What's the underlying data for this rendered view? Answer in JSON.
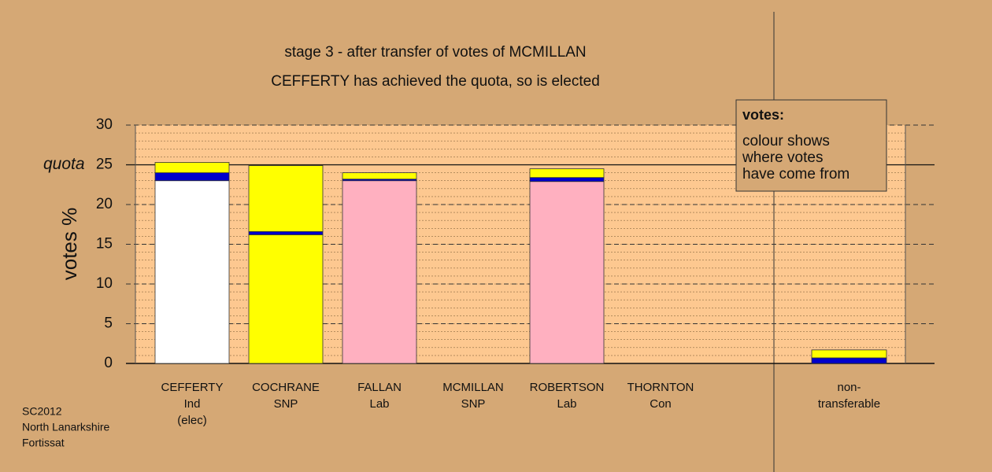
{
  "chart_data": {
    "type": "stacked-bar",
    "title": "stage 3 - after transfer of votes of MCMILLAN",
    "subtitle": "CEFFERTY has achieved the quota, so is elected",
    "y_label": "votes %",
    "ylim": [
      0,
      30
    ],
    "yticks": [
      0,
      5,
      10,
      15,
      20,
      {
        "value": 25,
        "label": "25"
      },
      30
    ],
    "quota": {
      "value": 25,
      "label": "quota"
    },
    "minor_grid_step": 1,
    "grid": true,
    "bars": [
      {
        "label": [
          "CEFFERTY",
          "Ind",
          "(elec)"
        ],
        "segments": [
          {
            "color": "#ffffff",
            "value": 23.0
          },
          {
            "color": "#0000cc",
            "value": 1.0
          },
          {
            "color": "#ffff00",
            "value": 1.3
          }
        ]
      },
      {
        "label": [
          "COCHRANE",
          "SNP"
        ],
        "segments": [
          {
            "color": "#ffff00",
            "value": 16.2
          },
          {
            "color": "#0000cc",
            "value": 0.4
          },
          {
            "color": "#ffff00",
            "value": 8.3
          }
        ]
      },
      {
        "label": [
          "FALLAN",
          "Lab"
        ],
        "segments": [
          {
            "color": "#ffb0c0",
            "value": 23.0
          },
          {
            "color": "#0000cc",
            "value": 0.2
          },
          {
            "color": "#ffff00",
            "value": 0.8
          }
        ]
      },
      {
        "label": [
          "MCMILLAN",
          "SNP"
        ],
        "segments": [
          {
            "color": "#ffff00",
            "value": 0
          }
        ]
      },
      {
        "label": [
          "ROBERTSON",
          "Lab"
        ],
        "segments": [
          {
            "color": "#ffb0c0",
            "value": 22.9
          },
          {
            "color": "#0000cc",
            "value": 0.5
          },
          {
            "color": "#ffff00",
            "value": 1.1
          }
        ]
      },
      {
        "label": [
          "THORNTON",
          "Con"
        ],
        "segments": [
          {
            "color": "#ffff00",
            "value": 0
          }
        ]
      }
    ],
    "nontransferable": {
      "label": [
        "non-",
        "transferable"
      ],
      "segments": [
        {
          "color": "#0000cc",
          "value": 0.7
        },
        {
          "color": "#ffff00",
          "value": 1.0
        }
      ]
    },
    "legend": {
      "title": "votes:",
      "lines": [
        "colour shows",
        "where votes",
        "have come from"
      ]
    },
    "footer": [
      "SC2012",
      "North Lanarkshire",
      "Fortissat"
    ]
  }
}
